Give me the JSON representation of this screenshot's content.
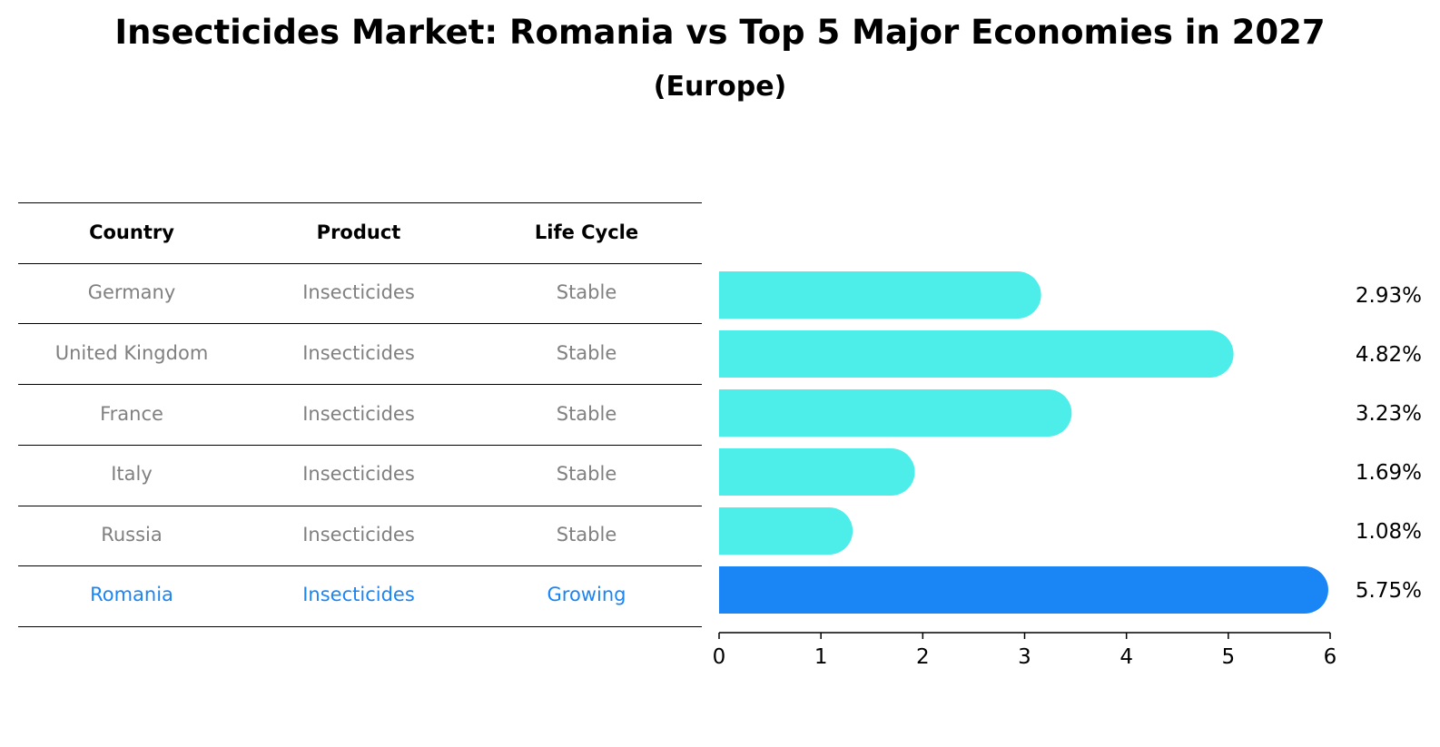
{
  "title": "Insecticides Market: Romania vs Top 5 Major Economies in 2027",
  "subtitle": "(Europe)",
  "table": {
    "headers": [
      "Country",
      "Product",
      "Life Cycle"
    ],
    "rows": [
      {
        "country": "Germany",
        "product": "Insecticides",
        "life_cycle": "Stable",
        "highlight": false
      },
      {
        "country": "United Kingdom",
        "product": "Insecticides",
        "life_cycle": "Stable",
        "highlight": false
      },
      {
        "country": "France",
        "product": "Insecticides",
        "life_cycle": "Stable",
        "highlight": false
      },
      {
        "country": "Italy",
        "product": "Insecticides",
        "life_cycle": "Stable",
        "highlight": false
      },
      {
        "country": "Russia",
        "product": "Insecticides",
        "life_cycle": "Stable",
        "highlight": false
      },
      {
        "country": "Romania",
        "product": "Insecticides",
        "life_cycle": "Growing",
        "highlight": true
      }
    ]
  },
  "colors": {
    "bar": "#4dede9",
    "highlight_bar": "#1a85f5",
    "highlight_text": "#1a85f5",
    "muted_text": "#808080"
  },
  "chart_data": {
    "type": "bar",
    "orientation": "horizontal",
    "categories": [
      "Germany",
      "United Kingdom",
      "France",
      "Italy",
      "Russia",
      "Romania"
    ],
    "values": [
      2.93,
      4.82,
      3.23,
      1.69,
      1.08,
      5.75
    ],
    "value_labels": [
      "2.93%",
      "4.82%",
      "3.23%",
      "1.69%",
      "1.08%",
      "5.75%"
    ],
    "highlight_index": 5,
    "xlim": [
      0,
      6
    ],
    "xticks": [
      "0",
      "1",
      "2",
      "3",
      "4",
      "5",
      "6"
    ],
    "grid": false
  }
}
